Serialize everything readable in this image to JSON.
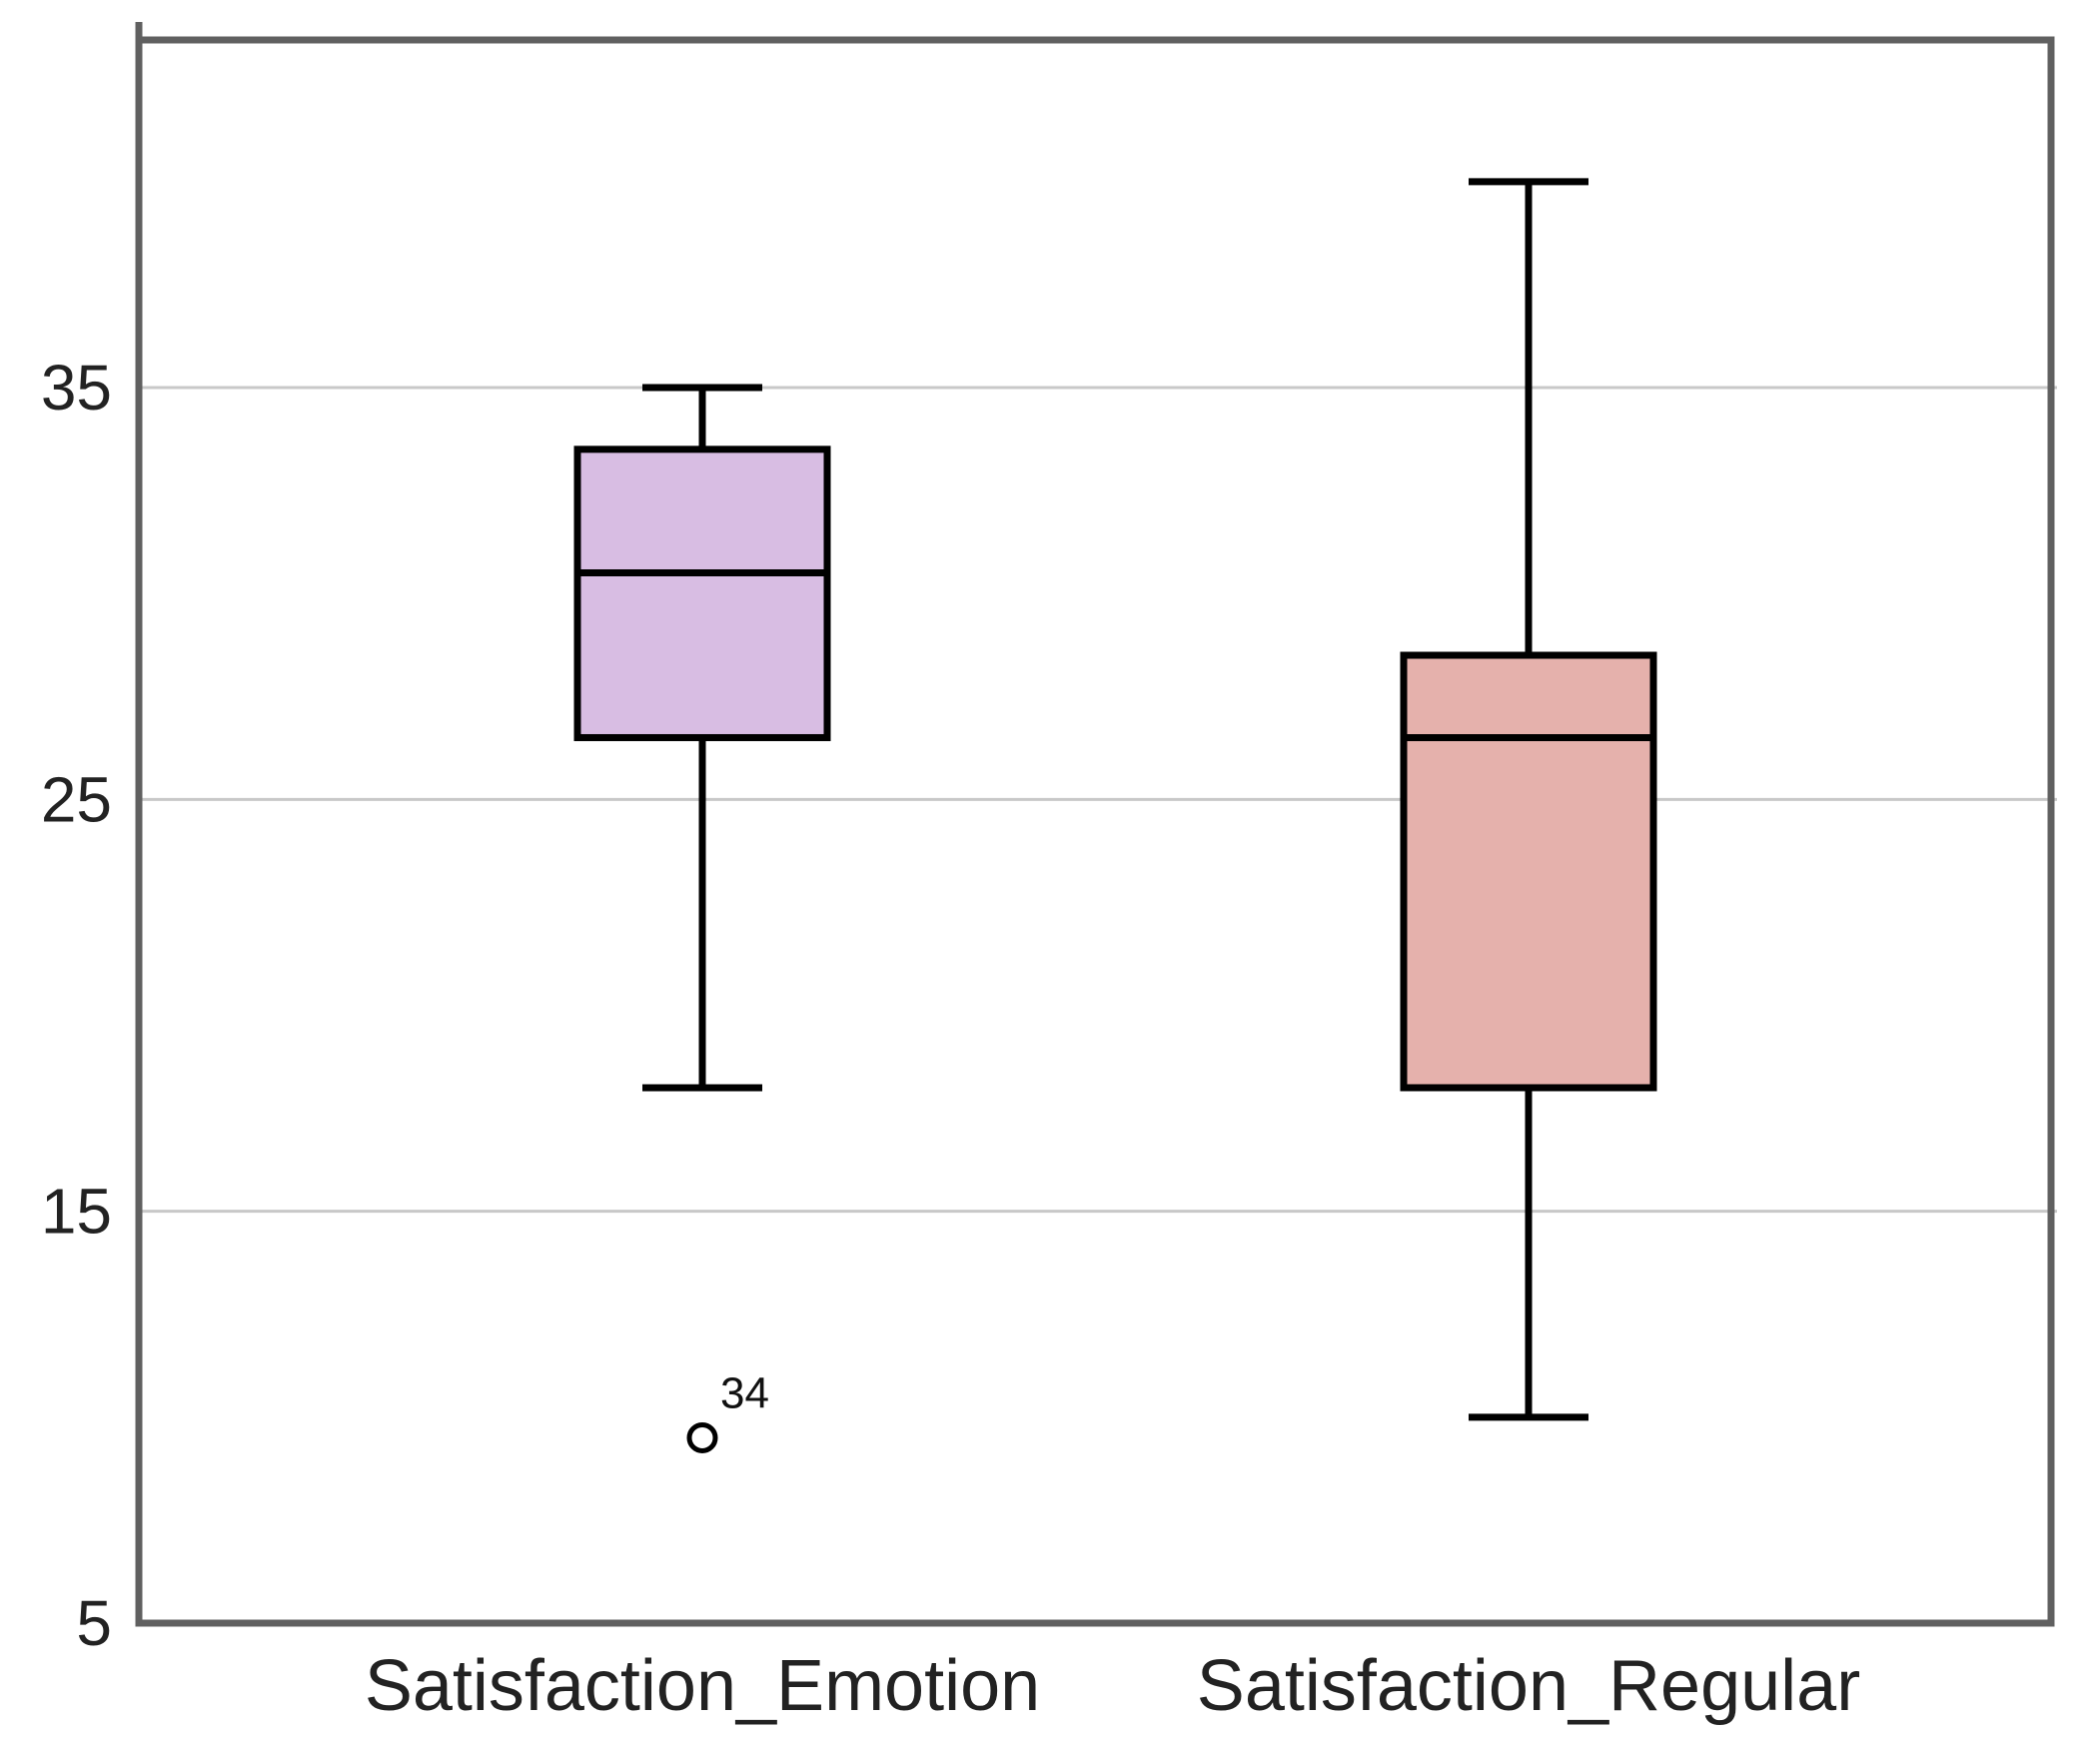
{
  "chart_data": {
    "type": "box",
    "title": "",
    "xlabel": "",
    "ylabel": "",
    "ylim": [
      5,
      44
    ],
    "yticks": [
      5,
      15,
      25,
      35
    ],
    "grid": true,
    "categories": [
      "Satisfaction_Emotion",
      "Satisfaction_Regular"
    ],
    "boxes": [
      {
        "category": "Satisfaction_Emotion",
        "whisker_low": 18,
        "q1": 26.5,
        "median": 30.5,
        "q3": 33.5,
        "whisker_high": 35,
        "fill": "#D8BDE3",
        "outliers": [
          {
            "value": 9.5,
            "label": "34"
          }
        ]
      },
      {
        "category": "Satisfaction_Regular",
        "whisker_low": 10,
        "q1": 18,
        "median": 26.5,
        "q3": 28.5,
        "whisker_high": 40,
        "fill": "#E5B1AC",
        "outliers": []
      }
    ],
    "colors": {
      "grid": "#C8C8C8",
      "frame": "#606060",
      "stroke": "#000000"
    }
  }
}
